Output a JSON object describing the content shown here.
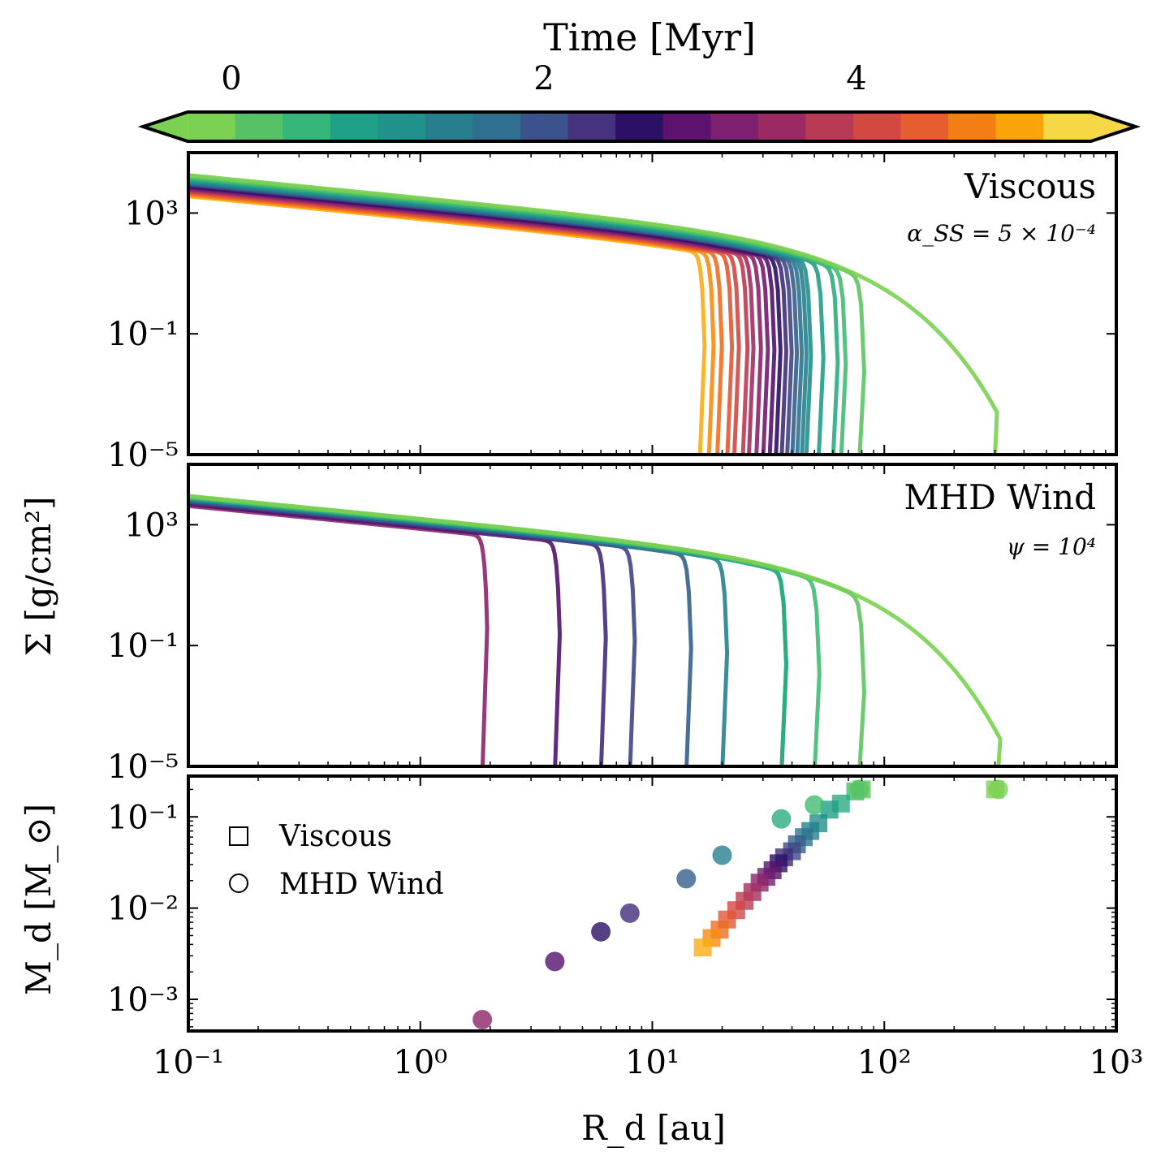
{
  "colorbar": {
    "label": "Time [Myr]",
    "ticks": [
      {
        "value": 0,
        "label": "0"
      },
      {
        "value": 2,
        "label": "2"
      },
      {
        "value": 4,
        "label": "4"
      }
    ],
    "range": [
      0,
      5.5
    ],
    "extend": "both",
    "colormap": [
      "#7ad151",
      "#57c166",
      "#35b779",
      "#1fa187",
      "#21918c",
      "#277f8e",
      "#2e6e8e",
      "#3b528b",
      "#46337e",
      "#2b1066",
      "#5c126e",
      "#7f1f6f",
      "#9b2964",
      "#b93a54",
      "#d44842",
      "#e65d2f",
      "#f57d15",
      "#fba40a",
      "#f6d746"
    ]
  },
  "chart_data": [
    {
      "type": "line",
      "panel": "top",
      "annotation": "Viscous",
      "parameter": "α_SS = 5 × 10⁻⁴",
      "yscale": "log",
      "xscale": "log",
      "ylim": [
        1e-05,
        100000.0
      ],
      "xlim": [
        0.1,
        1000
      ],
      "ytick_labels": [
        "10³",
        "10⁻¹",
        "10⁻⁵"
      ],
      "series": [
        {
          "t": 0.0,
          "sigma_at_0p1": 18000,
          "cutoff_radius": null,
          "tail_end": 300
        },
        {
          "t": 0.25,
          "sigma_at_0p1": 16500,
          "cutoff_radius": 78
        },
        {
          "t": 0.5,
          "sigma_at_0p1": 15000,
          "cutoff_radius": 65
        },
        {
          "t": 0.75,
          "sigma_at_0p1": 13800,
          "cutoff_radius": 60
        },
        {
          "t": 1.0,
          "sigma_at_0p1": 12600,
          "cutoff_radius": 52
        },
        {
          "t": 1.25,
          "sigma_at_0p1": 11700,
          "cutoff_radius": 46
        },
        {
          "t": 1.5,
          "sigma_at_0p1": 10900,
          "cutoff_radius": 44
        },
        {
          "t": 1.75,
          "sigma_at_0p1": 10200,
          "cutoff_radius": 42
        },
        {
          "t": 2.0,
          "sigma_at_0p1": 9600,
          "cutoff_radius": 40
        },
        {
          "t": 2.25,
          "sigma_at_0p1": 9000,
          "cutoff_radius": 38
        },
        {
          "t": 2.5,
          "sigma_at_0p1": 8400,
          "cutoff_radius": 36
        },
        {
          "t": 2.75,
          "sigma_at_0p1": 7900,
          "cutoff_radius": 34
        },
        {
          "t": 3.0,
          "sigma_at_0p1": 7400,
          "cutoff_radius": 32
        },
        {
          "t": 3.25,
          "sigma_at_0p1": 6900,
          "cutoff_radius": 30
        },
        {
          "t": 3.5,
          "sigma_at_0p1": 6400,
          "cutoff_radius": 28
        },
        {
          "t": 3.75,
          "sigma_at_0p1": 6000,
          "cutoff_radius": 26
        },
        {
          "t": 4.0,
          "sigma_at_0p1": 5600,
          "cutoff_radius": 24.5
        },
        {
          "t": 4.25,
          "sigma_at_0p1": 5200,
          "cutoff_radius": 22.5
        },
        {
          "t": 4.5,
          "sigma_at_0p1": 4800,
          "cutoff_radius": 21
        },
        {
          "t": 4.75,
          "sigma_at_0p1": 4400,
          "cutoff_radius": 19
        },
        {
          "t": 5.0,
          "sigma_at_0p1": 4000,
          "cutoff_radius": 17.5
        },
        {
          "t": 5.25,
          "sigma_at_0p1": 3600,
          "cutoff_radius": 16
        }
      ]
    },
    {
      "type": "line",
      "panel": "middle",
      "annotation": "MHD Wind",
      "parameter": "ψ = 10⁴",
      "yscale": "log",
      "xscale": "log",
      "ylim": [
        1e-05,
        100000.0
      ],
      "xlim": [
        0.1,
        1000
      ],
      "ytick_labels": [
        "10³",
        "10⁻¹",
        "10⁻⁵"
      ],
      "ylabel": "Σ [g/cm²]",
      "series": [
        {
          "t": 0.0,
          "sigma_at_0p1": 9000,
          "cutoff_radius": null,
          "tail_end": 310
        },
        {
          "t": 0.25,
          "sigma_at_0p1": 8600,
          "cutoff_radius": 78
        },
        {
          "t": 0.5,
          "sigma_at_0p1": 8200,
          "cutoff_radius": 50
        },
        {
          "t": 0.75,
          "sigma_at_0p1": 7800,
          "cutoff_radius": 36
        },
        {
          "t": 1.0,
          "sigma_at_0p1": 7400,
          "cutoff_radius": 36
        },
        {
          "t": 1.5,
          "sigma_at_0p1": 6800,
          "cutoff_radius": 20
        },
        {
          "t": 2.0,
          "sigma_at_0p1": 6200,
          "cutoff_radius": 14
        },
        {
          "t": 2.25,
          "sigma_at_0p1": 5800,
          "cutoff_radius": 8
        },
        {
          "t": 2.5,
          "sigma_at_0p1": 5400,
          "cutoff_radius": 6
        },
        {
          "t": 3.0,
          "sigma_at_0p1": 4800,
          "cutoff_radius": 3.8
        },
        {
          "t": 3.5,
          "sigma_at_0p1": 4200,
          "cutoff_radius": 1.85
        }
      ]
    },
    {
      "type": "scatter",
      "panel": "bottom",
      "yscale": "log",
      "xscale": "log",
      "xlim": [
        0.1,
        1000
      ],
      "ylim": [
        0.00045,
        0.28
      ],
      "xlabel": "R_d [au]",
      "ylabel": "M_d [M_⊙]",
      "xtick_labels": [
        "10⁻¹",
        "10⁰",
        "10¹",
        "10²",
        "10³"
      ],
      "ytick_labels": [
        "10⁻¹",
        "10⁻²",
        "10⁻³"
      ],
      "legend": {
        "placement": "upper-left",
        "entries": [
          {
            "marker": "square",
            "label": "Viscous"
          },
          {
            "marker": "circle",
            "label": "MHD Wind"
          }
        ]
      },
      "series": [
        {
          "name": "Viscous",
          "marker": "square",
          "points": [
            {
              "t": 0.0,
              "x": 300,
              "y": 0.2
            },
            {
              "t": 0.25,
              "x": 80,
              "y": 0.2
            },
            {
              "t": 0.5,
              "x": 75,
              "y": 0.19
            },
            {
              "t": 0.75,
              "x": 65,
              "y": 0.14
            },
            {
              "t": 1.0,
              "x": 58,
              "y": 0.12
            },
            {
              "t": 1.25,
              "x": 52,
              "y": 0.085
            },
            {
              "t": 1.5,
              "x": 48,
              "y": 0.07
            },
            {
              "t": 1.75,
              "x": 45,
              "y": 0.06
            },
            {
              "t": 2.0,
              "x": 42,
              "y": 0.05
            },
            {
              "t": 2.25,
              "x": 40,
              "y": 0.042
            },
            {
              "t": 2.5,
              "x": 37,
              "y": 0.036
            },
            {
              "t": 2.75,
              "x": 35,
              "y": 0.031
            },
            {
              "t": 3.0,
              "x": 33,
              "y": 0.026
            },
            {
              "t": 3.25,
              "x": 31,
              "y": 0.022
            },
            {
              "t": 3.5,
              "x": 29,
              "y": 0.019
            },
            {
              "t": 3.75,
              "x": 27,
              "y": 0.015
            },
            {
              "t": 4.0,
              "x": 25,
              "y": 0.012
            },
            {
              "t": 4.25,
              "x": 23,
              "y": 0.0095
            },
            {
              "t": 4.5,
              "x": 21,
              "y": 0.0075
            },
            {
              "t": 4.75,
              "x": 19.5,
              "y": 0.0058
            },
            {
              "t": 5.0,
              "x": 18,
              "y": 0.0047
            },
            {
              "t": 5.25,
              "x": 16.5,
              "y": 0.0037
            }
          ]
        },
        {
          "name": "MHD Wind",
          "marker": "circle",
          "points": [
            {
              "t": 0.0,
              "x": 310,
              "y": 0.2
            },
            {
              "t": 0.25,
              "x": 78,
              "y": 0.2
            },
            {
              "t": 0.5,
              "x": 50,
              "y": 0.135
            },
            {
              "t": 0.75,
              "x": 36,
              "y": 0.095
            },
            {
              "t": 1.5,
              "x": 20,
              "y": 0.038
            },
            {
              "t": 2.0,
              "x": 14,
              "y": 0.021
            },
            {
              "t": 2.5,
              "x": 8,
              "y": 0.0088
            },
            {
              "t": 2.75,
              "x": 6,
              "y": 0.0055
            },
            {
              "t": 3.0,
              "x": 3.8,
              "y": 0.0026
            },
            {
              "t": 3.5,
              "x": 1.85,
              "y": 0.0006
            }
          ]
        }
      ]
    }
  ]
}
